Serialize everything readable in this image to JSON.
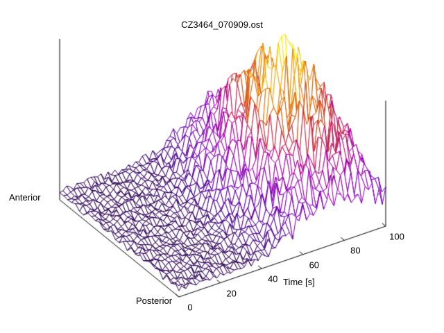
{
  "chart_data": {
    "type": "surface",
    "title": "CZ3464_070909.ost",
    "x_axis": {
      "label": "Time [s]",
      "min": 0,
      "max": 100,
      "ticks": [
        0,
        20,
        40,
        60,
        80,
        100
      ]
    },
    "depth_axis": {
      "front_label": "Posterior",
      "back_label": "Anterior"
    },
    "z_axis": {
      "min": 0,
      "max": 1,
      "ticks_visible": false
    },
    "grid": {
      "time_points": 60,
      "space_points": 30
    },
    "axis_color": "#000000",
    "background_color": "#ffffff",
    "colormap": {
      "name": "pm3d-black-purple-red-yellow",
      "stops": [
        [
          0.0,
          "#140022"
        ],
        [
          0.16,
          "#4b0096"
        ],
        [
          0.34,
          "#8500c3"
        ],
        [
          0.5,
          "#b000a0"
        ],
        [
          0.62,
          "#c81e50"
        ],
        [
          0.74,
          "#d94a00"
        ],
        [
          0.87,
          "#f29500"
        ],
        [
          1.0,
          "#ffe90a"
        ]
      ]
    },
    "surface_model": {
      "description": "Flat low baseline mesh; transient bump rising after ~40 s, peaking near 76 s at mid-to-anterior positions, decaying toward 100 s; jagged wireframe noise grows with amplitude.",
      "baseline": 0.05,
      "amplitude": 0.72,
      "temporal_peak_s": 76,
      "temporal_sigma_rise_s": 16,
      "temporal_sigma_fall_s": 19,
      "spatial_center": 0.45,
      "spatial_sigma": 0.27,
      "spatial_floor": 0.22,
      "noise_base": 0.012,
      "noise_peak_gain": 0.16,
      "color_max": 0.8
    }
  }
}
